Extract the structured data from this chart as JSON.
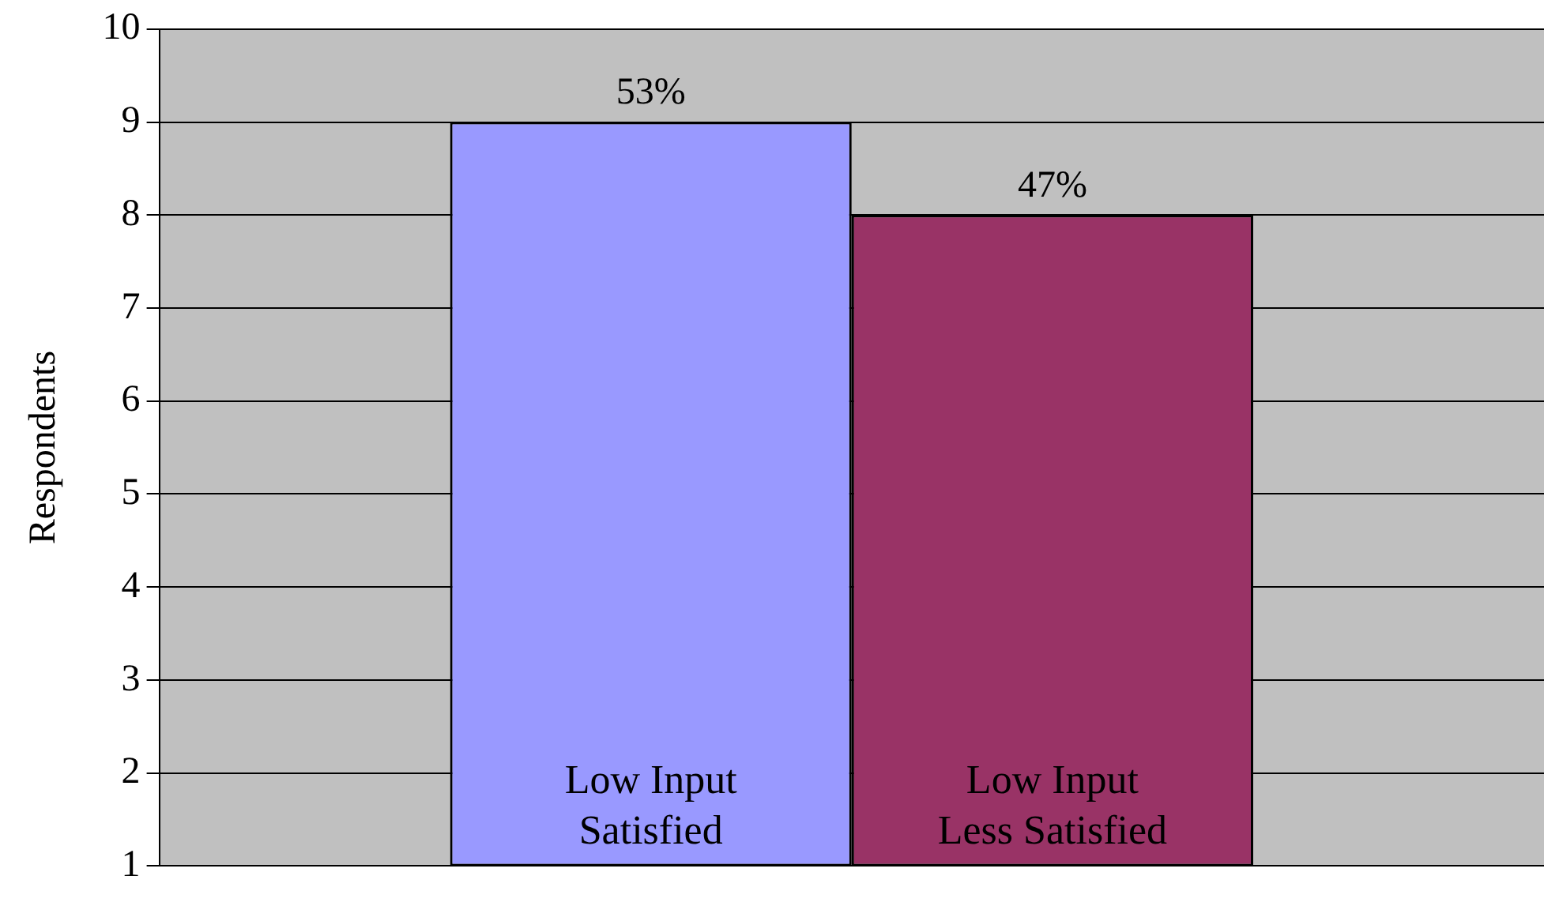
{
  "chart_data": {
    "type": "bar",
    "ylabel": "Respondents",
    "categories": [
      null
    ],
    "series": [
      {
        "name": "Low Input Satisfied",
        "color": "#9999ff",
        "values": [
          9
        ]
      },
      {
        "name": "Low Input Less Satisfied",
        "color": "#993366",
        "values": [
          8
        ]
      }
    ],
    "annotations": [
      "53%",
      "47%"
    ],
    "ylim": [
      1,
      10
    ],
    "yticks": [
      1,
      2,
      3,
      4,
      5,
      6,
      7,
      8,
      9,
      10
    ],
    "grid": "y",
    "legend": false
  }
}
